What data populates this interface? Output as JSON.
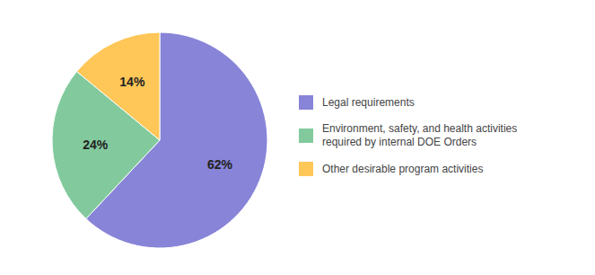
{
  "chart_data": {
    "type": "pie",
    "categories": [
      "Legal requirements",
      "Environment, safety, and health activities\nrequired by internal DOE Orders",
      "Other desirable program activities"
    ],
    "values": [
      62,
      24,
      14
    ],
    "value_labels": [
      "62%",
      "24%",
      "14%"
    ],
    "data_labels": true,
    "legend": "right",
    "colors": [
      "#8884d8",
      "#82ca9d",
      "#ffc658"
    ]
  }
}
